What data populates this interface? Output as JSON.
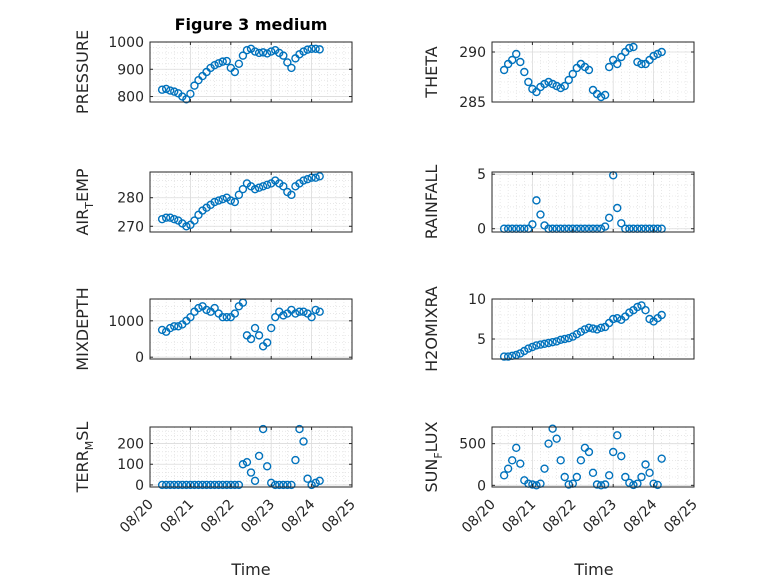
{
  "figure": {
    "title": "Figure 3 medium",
    "marker_color": "#0072bd",
    "xlabel": "Time",
    "xticks": [
      "08/20",
      "08/21",
      "08/22",
      "08/23",
      "08/24",
      "08/25"
    ]
  },
  "chart_data": [
    {
      "type": "scatter",
      "ylabel": "PRESSURE",
      "ylim": [
        780,
        1000
      ],
      "yticks": [
        800,
        900,
        1000
      ],
      "grid": true,
      "x": [
        0.3,
        0.4,
        0.5,
        0.6,
        0.7,
        0.8,
        0.9,
        1.0,
        1.1,
        1.2,
        1.3,
        1.4,
        1.5,
        1.6,
        1.7,
        1.8,
        1.9,
        2.0,
        2.1,
        2.2,
        2.3,
        2.4,
        2.5,
        2.6,
        2.7,
        2.8,
        2.9,
        3.0,
        3.1,
        3.2,
        3.3,
        3.4,
        3.5,
        3.6,
        3.7,
        3.8,
        3.9,
        4.0,
        4.1,
        4.2
      ],
      "y": [
        825,
        828,
        822,
        818,
        812,
        800,
        790,
        810,
        840,
        860,
        875,
        890,
        905,
        915,
        922,
        928,
        930,
        905,
        890,
        920,
        950,
        970,
        975,
        965,
        960,
        962,
        958,
        965,
        970,
        960,
        950,
        925,
        905,
        940,
        955,
        965,
        972,
        975,
        975,
        973
      ]
    },
    {
      "type": "scatter",
      "ylabel": "AIR_TEMP",
      "ylabel_main": "AIR",
      "ylabel_sub": "T",
      "ylabel_rest": "EMP",
      "ylim": [
        268,
        289
      ],
      "yticks": [
        270,
        280
      ],
      "grid": true,
      "x": [
        0.3,
        0.4,
        0.5,
        0.6,
        0.7,
        0.8,
        0.9,
        1.0,
        1.1,
        1.2,
        1.3,
        1.4,
        1.5,
        1.6,
        1.7,
        1.8,
        1.9,
        2.0,
        2.1,
        2.2,
        2.3,
        2.4,
        2.5,
        2.6,
        2.7,
        2.8,
        2.9,
        3.0,
        3.1,
        3.2,
        3.3,
        3.4,
        3.5,
        3.6,
        3.7,
        3.8,
        3.9,
        4.0,
        4.1,
        4.2
      ],
      "y": [
        272.5,
        273,
        273,
        272.5,
        272,
        271,
        270,
        270.5,
        272,
        274,
        275.5,
        276.5,
        277.5,
        278.5,
        279,
        279.5,
        280,
        279,
        278.5,
        281,
        283,
        285,
        284,
        283,
        283.5,
        284,
        284.5,
        285,
        286,
        285,
        284,
        282,
        281,
        284,
        285,
        286,
        286.5,
        287,
        287,
        287.5
      ]
    },
    {
      "type": "scatter",
      "ylabel": "MIXDEPTH",
      "ylim": [
        -50,
        1600
      ],
      "yticks": [
        0,
        1000
      ],
      "grid": true,
      "x": [
        0.3,
        0.4,
        0.5,
        0.6,
        0.7,
        0.8,
        0.9,
        1.0,
        1.1,
        1.2,
        1.3,
        1.4,
        1.5,
        1.6,
        1.7,
        1.8,
        1.9,
        2.0,
        2.1,
        2.2,
        2.3,
        2.4,
        2.5,
        2.6,
        2.7,
        2.8,
        2.9,
        3.0,
        3.1,
        3.2,
        3.3,
        3.4,
        3.5,
        3.6,
        3.7,
        3.8,
        3.9,
        4.0,
        4.1,
        4.2
      ],
      "y": [
        750,
        700,
        800,
        850,
        850,
        900,
        1000,
        1100,
        1250,
        1350,
        1400,
        1300,
        1250,
        1350,
        1200,
        1100,
        1100,
        1100,
        1200,
        1400,
        1500,
        600,
        500,
        800,
        600,
        300,
        400,
        800,
        1100,
        1250,
        1150,
        1200,
        1300,
        1200,
        1250,
        1250,
        1200,
        1100,
        1300,
        1250
      ]
    },
    {
      "type": "scatter",
      "ylabel": "TERR_MSL",
      "ylabel_main": "TERR",
      "ylabel_sub": "M",
      "ylabel_rest": "SL",
      "ylim": [
        -10,
        280
      ],
      "yticks": [
        0,
        100,
        200
      ],
      "grid": true,
      "x": [
        0.3,
        0.4,
        0.5,
        0.6,
        0.7,
        0.8,
        0.9,
        1.0,
        1.1,
        1.2,
        1.3,
        1.4,
        1.5,
        1.6,
        1.7,
        1.8,
        1.9,
        2.0,
        2.1,
        2.2,
        2.3,
        2.4,
        2.5,
        2.6,
        2.7,
        2.8,
        2.9,
        3.0,
        3.1,
        3.2,
        3.3,
        3.4,
        3.5,
        3.6,
        3.7,
        3.8,
        3.9,
        4.0,
        4.1,
        4.2
      ],
      "y": [
        0,
        0,
        0,
        0,
        0,
        0,
        0,
        0,
        0,
        0,
        0,
        0,
        0,
        0,
        0,
        0,
        0,
        0,
        0,
        0,
        100,
        110,
        60,
        20,
        140,
        270,
        90,
        10,
        0,
        0,
        0,
        0,
        0,
        120,
        270,
        210,
        30,
        0,
        10,
        20
      ]
    },
    {
      "type": "scatter",
      "ylabel": "THETA",
      "ylim": [
        285,
        291
      ],
      "yticks": [
        285,
        290
      ],
      "grid": true,
      "x": [
        0.3,
        0.4,
        0.5,
        0.6,
        0.7,
        0.8,
        0.9,
        1.0,
        1.1,
        1.2,
        1.3,
        1.4,
        1.5,
        1.6,
        1.7,
        1.8,
        1.9,
        2.0,
        2.1,
        2.2,
        2.3,
        2.4,
        2.5,
        2.6,
        2.7,
        2.8,
        2.9,
        3.0,
        3.1,
        3.2,
        3.3,
        3.4,
        3.5,
        3.6,
        3.7,
        3.8,
        3.9,
        4.0,
        4.1,
        4.2
      ],
      "y": [
        288.2,
        288.8,
        289.2,
        289.8,
        289.0,
        288.0,
        287.0,
        286.3,
        286.0,
        286.5,
        286.8,
        287.0,
        286.8,
        286.6,
        286.4,
        286.6,
        287.2,
        287.8,
        288.4,
        288.8,
        288.5,
        288.2,
        286.2,
        285.8,
        285.5,
        285.7,
        288.5,
        289.2,
        288.8,
        289.5,
        290.0,
        290.4,
        290.5,
        289.0,
        288.8,
        288.8,
        289.2,
        289.6,
        289.8,
        290.0
      ]
    },
    {
      "type": "scatter",
      "ylabel": "RAINFALL",
      "ylim": [
        -0.3,
        5.2
      ],
      "yticks": [
        0,
        5
      ],
      "grid": true,
      "x": [
        0.3,
        0.4,
        0.5,
        0.6,
        0.7,
        0.8,
        0.9,
        1.0,
        1.1,
        1.2,
        1.3,
        1.4,
        1.5,
        1.6,
        1.7,
        1.8,
        1.9,
        2.0,
        2.1,
        2.2,
        2.3,
        2.4,
        2.5,
        2.6,
        2.7,
        2.8,
        2.9,
        3.0,
        3.1,
        3.2,
        3.3,
        3.4,
        3.5,
        3.6,
        3.7,
        3.8,
        3.9,
        4.0,
        4.1,
        4.2
      ],
      "y": [
        0,
        0,
        0,
        0,
        0,
        0,
        0,
        0.4,
        2.6,
        1.3,
        0.3,
        0,
        0,
        0,
        0,
        0,
        0,
        0,
        0,
        0,
        0,
        0,
        0,
        0,
        0,
        0.2,
        1.0,
        4.9,
        1.9,
        0.5,
        0,
        0,
        0,
        0,
        0,
        0,
        0,
        0,
        0,
        0
      ]
    },
    {
      "type": "scatter",
      "ylabel": "H2OMIXRA",
      "ylim": [
        2.5,
        10
      ],
      "yticks": [
        5,
        10
      ],
      "grid": true,
      "x": [
        0.3,
        0.4,
        0.5,
        0.6,
        0.7,
        0.8,
        0.9,
        1.0,
        1.1,
        1.2,
        1.3,
        1.4,
        1.5,
        1.6,
        1.7,
        1.8,
        1.9,
        2.0,
        2.1,
        2.2,
        2.3,
        2.4,
        2.5,
        2.6,
        2.7,
        2.8,
        2.9,
        3.0,
        3.1,
        3.2,
        3.3,
        3.4,
        3.5,
        3.6,
        3.7,
        3.8,
        3.9,
        4.0,
        4.1,
        4.2
      ],
      "y": [
        2.8,
        2.8,
        2.9,
        3.0,
        3.2,
        3.5,
        3.8,
        4.0,
        4.2,
        4.3,
        4.4,
        4.5,
        4.6,
        4.7,
        4.9,
        5.0,
        5.1,
        5.3,
        5.6,
        5.9,
        6.2,
        6.4,
        6.3,
        6.2,
        6.4,
        6.5,
        7.0,
        7.5,
        7.6,
        7.4,
        7.8,
        8.3,
        8.6,
        9.0,
        9.2,
        8.6,
        7.5,
        7.2,
        7.6,
        8.0
      ]
    },
    {
      "type": "scatter",
      "ylabel": "SUN_FLUX",
      "ylabel_main": "SUN",
      "ylabel_sub": "F",
      "ylabel_rest": "LUX",
      "ylim": [
        -20,
        700
      ],
      "yticks": [
        0,
        500
      ],
      "grid": true,
      "x": [
        0.3,
        0.4,
        0.5,
        0.6,
        0.7,
        0.8,
        0.9,
        1.0,
        1.1,
        1.2,
        1.3,
        1.4,
        1.5,
        1.6,
        1.7,
        1.8,
        1.9,
        2.0,
        2.1,
        2.2,
        2.3,
        2.4,
        2.5,
        2.6,
        2.7,
        2.8,
        2.9,
        3.0,
        3.1,
        3.2,
        3.3,
        3.4,
        3.5,
        3.6,
        3.7,
        3.8,
        3.9,
        4.0,
        4.1,
        4.2
      ],
      "y": [
        120,
        200,
        300,
        450,
        260,
        60,
        20,
        10,
        0,
        20,
        200,
        500,
        680,
        560,
        300,
        100,
        10,
        20,
        100,
        300,
        450,
        400,
        150,
        10,
        0,
        10,
        120,
        400,
        600,
        350,
        100,
        30,
        5,
        20,
        100,
        250,
        150,
        20,
        5,
        320
      ]
    }
  ]
}
